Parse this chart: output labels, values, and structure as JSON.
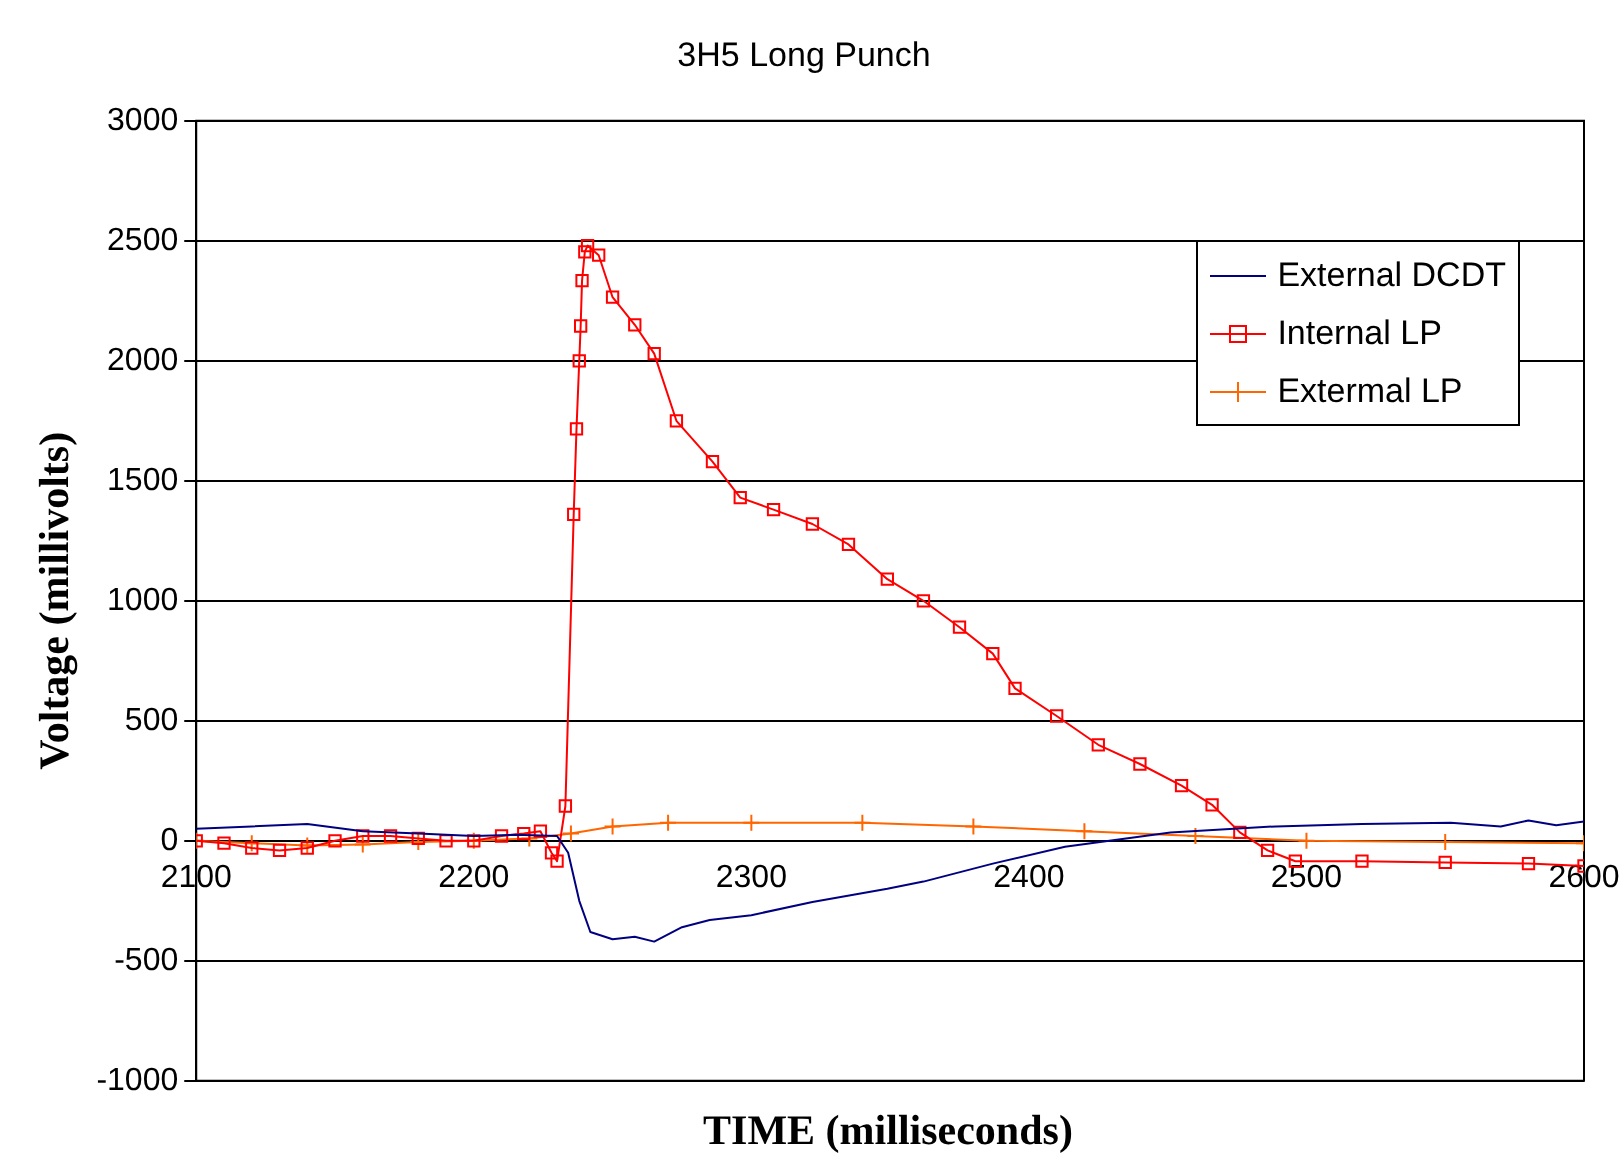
{
  "chart_data": {
    "type": "line",
    "title": "3H5 Long Punch",
    "xlabel": "TIME (milliseconds)",
    "ylabel": "Voltage (millivolts)",
    "xlim": [
      2100,
      2600
    ],
    "xticks": [
      2100,
      2200,
      2300,
      2400,
      2500,
      2600
    ],
    "ylim": [
      -1000,
      3000
    ],
    "yticks": [
      -1000,
      -500,
      0,
      500,
      1000,
      1500,
      2000,
      2500,
      3000
    ],
    "grid": "y",
    "legend": "top right",
    "line_style": "solid",
    "series": [
      {
        "name": "External DCDT",
        "color": "#000080",
        "marker": "none",
        "x": [
          2100,
          2120,
          2140,
          2160,
          2180,
          2200,
          2215,
          2230,
          2234,
          2238,
          2242,
          2250,
          2258,
          2265,
          2275,
          2285,
          2300,
          2322,
          2349,
          2362,
          2387,
          2413,
          2451,
          2489,
          2520,
          2552,
          2570,
          2580,
          2590,
          2600
        ],
        "values": [
          50,
          60,
          70,
          40,
          30,
          20,
          25,
          20,
          -50,
          -250,
          -380,
          -410,
          -400,
          -420,
          -360,
          -330,
          -310,
          -255,
          -200,
          -170,
          -95,
          -25,
          35,
          60,
          70,
          75,
          60,
          85,
          65,
          80
        ]
      },
      {
        "name": "Internal LP",
        "color": "#ff0000",
        "marker": "square",
        "x": [
          2100,
          2110,
          2120,
          2130,
          2140,
          2150,
          2160,
          2170,
          2180,
          2190,
          2200,
          2210,
          2218,
          2224,
          2228,
          2230,
          2233,
          2236,
          2237,
          2238,
          2238.5,
          2239,
          2240,
          2241,
          2245,
          2250,
          2258,
          2265,
          2273,
          2286,
          2296,
          2308,
          2322,
          2335,
          2349,
          2362,
          2375,
          2387,
          2395,
          2410,
          2425,
          2440,
          2455,
          2466,
          2476,
          2486,
          2496,
          2520,
          2550,
          2580,
          2600
        ],
        "values": [
          0,
          -10,
          -30,
          -40,
          -30,
          0,
          20,
          20,
          10,
          0,
          0,
          20,
          30,
          40,
          -50,
          -85,
          145,
          1360,
          1716,
          2000,
          2145,
          2334,
          2454,
          2480,
          2440,
          2265,
          2150,
          2030,
          1750,
          1580,
          1430,
          1380,
          1320,
          1235,
          1090,
          1000,
          890,
          780,
          635,
          520,
          400,
          320,
          230,
          150,
          35,
          -40,
          -85,
          -85,
          -90,
          -95,
          -105
        ]
      },
      {
        "name": "Extermal LP",
        "color": "#ff6600",
        "marker": "cross",
        "x": [
          2100,
          2120,
          2140,
          2160,
          2180,
          2200,
          2220,
          2235,
          2250,
          2270,
          2300,
          2340,
          2380,
          2420,
          2460,
          2500,
          2550,
          2600
        ],
        "values": [
          0,
          -10,
          -20,
          -15,
          -5,
          0,
          10,
          30,
          60,
          75,
          75,
          75,
          60,
          40,
          20,
          0,
          -5,
          -10
        ]
      }
    ]
  }
}
